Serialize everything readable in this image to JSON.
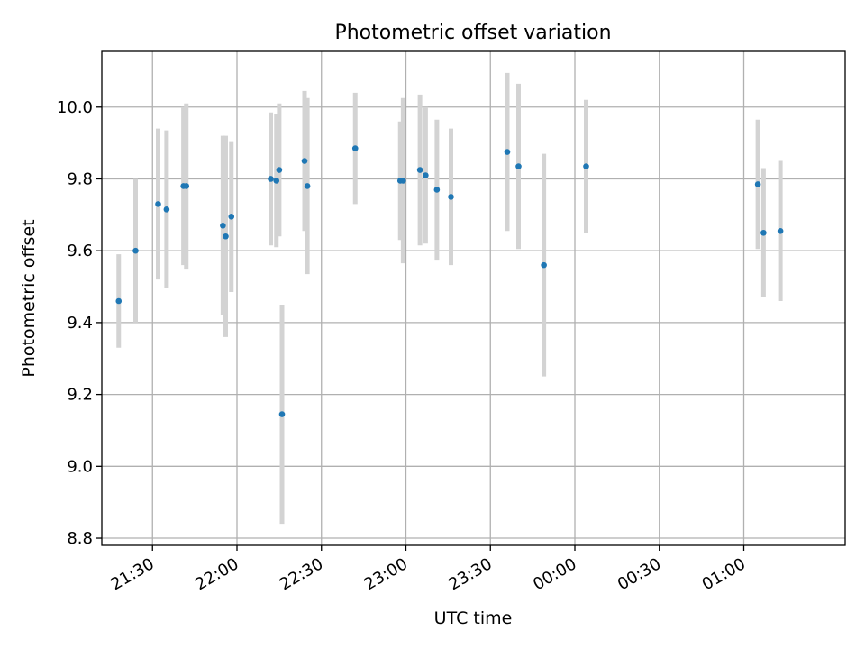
{
  "chart_data": {
    "type": "scatter",
    "title": "Photometric offset variation",
    "xlabel": "UTC time",
    "ylabel": "Photometric offset",
    "grid": true,
    "legend": "none",
    "x_is_time": true,
    "xlim": [
      "21:12",
      "01:36"
    ],
    "ylim": [
      8.78,
      10.155
    ],
    "x_ticks": [
      "21:30",
      "22:00",
      "22:30",
      "23:00",
      "23:30",
      "00:00",
      "00:30",
      "01:00"
    ],
    "y_ticks": [
      "8.8",
      "9.0",
      "9.2",
      "9.4",
      "9.6",
      "9.8",
      "10.0"
    ],
    "colors": {
      "point": "#1f77b4",
      "error_bar": "#d3d3d3",
      "grid": "#b0b0b0"
    },
    "points": [
      {
        "x": "21:18",
        "y": 9.46,
        "err": 0.13
      },
      {
        "x": "21:24",
        "y": 9.6,
        "err": 0.2
      },
      {
        "x": "21:32",
        "y": 9.73,
        "err": 0.21
      },
      {
        "x": "21:35",
        "y": 9.715,
        "err": 0.22
      },
      {
        "x": "21:41",
        "y": 9.78,
        "err": 0.22
      },
      {
        "x": "21:42",
        "y": 9.78,
        "err": 0.23
      },
      {
        "x": "21:55",
        "y": 9.67,
        "err": 0.25
      },
      {
        "x": "21:56",
        "y": 9.64,
        "err": 0.28
      },
      {
        "x": "21:58",
        "y": 9.695,
        "err": 0.21
      },
      {
        "x": "22:12",
        "y": 9.8,
        "err": 0.185
      },
      {
        "x": "22:14",
        "y": 9.795,
        "err": 0.185
      },
      {
        "x": "22:15",
        "y": 9.825,
        "err": 0.185
      },
      {
        "x": "22:16",
        "y": 9.145,
        "err": 0.305
      },
      {
        "x": "22:24",
        "y": 9.85,
        "err": 0.195
      },
      {
        "x": "22:25",
        "y": 9.78,
        "err": 0.245
      },
      {
        "x": "22:42",
        "y": 9.885,
        "err": 0.155
      },
      {
        "x": "22:58",
        "y": 9.795,
        "err": 0.165
      },
      {
        "x": "22:59",
        "y": 9.795,
        "err": 0.23
      },
      {
        "x": "23:05",
        "y": 9.825,
        "err": 0.21
      },
      {
        "x": "23:07",
        "y": 9.81,
        "err": 0.19
      },
      {
        "x": "23:11",
        "y": 9.77,
        "err": 0.195
      },
      {
        "x": "23:16",
        "y": 9.75,
        "err": 0.19
      },
      {
        "x": "23:36",
        "y": 9.875,
        "err": 0.22
      },
      {
        "x": "23:40",
        "y": 9.835,
        "err": 0.23
      },
      {
        "x": "23:49",
        "y": 9.56,
        "err": 0.31
      },
      {
        "x": "00:04",
        "y": 9.835,
        "err": 0.185
      },
      {
        "x": "01:05",
        "y": 9.785,
        "err": 0.18
      },
      {
        "x": "01:07",
        "y": 9.65,
        "err": 0.18
      },
      {
        "x": "01:13",
        "y": 9.655,
        "err": 0.195
      }
    ]
  }
}
